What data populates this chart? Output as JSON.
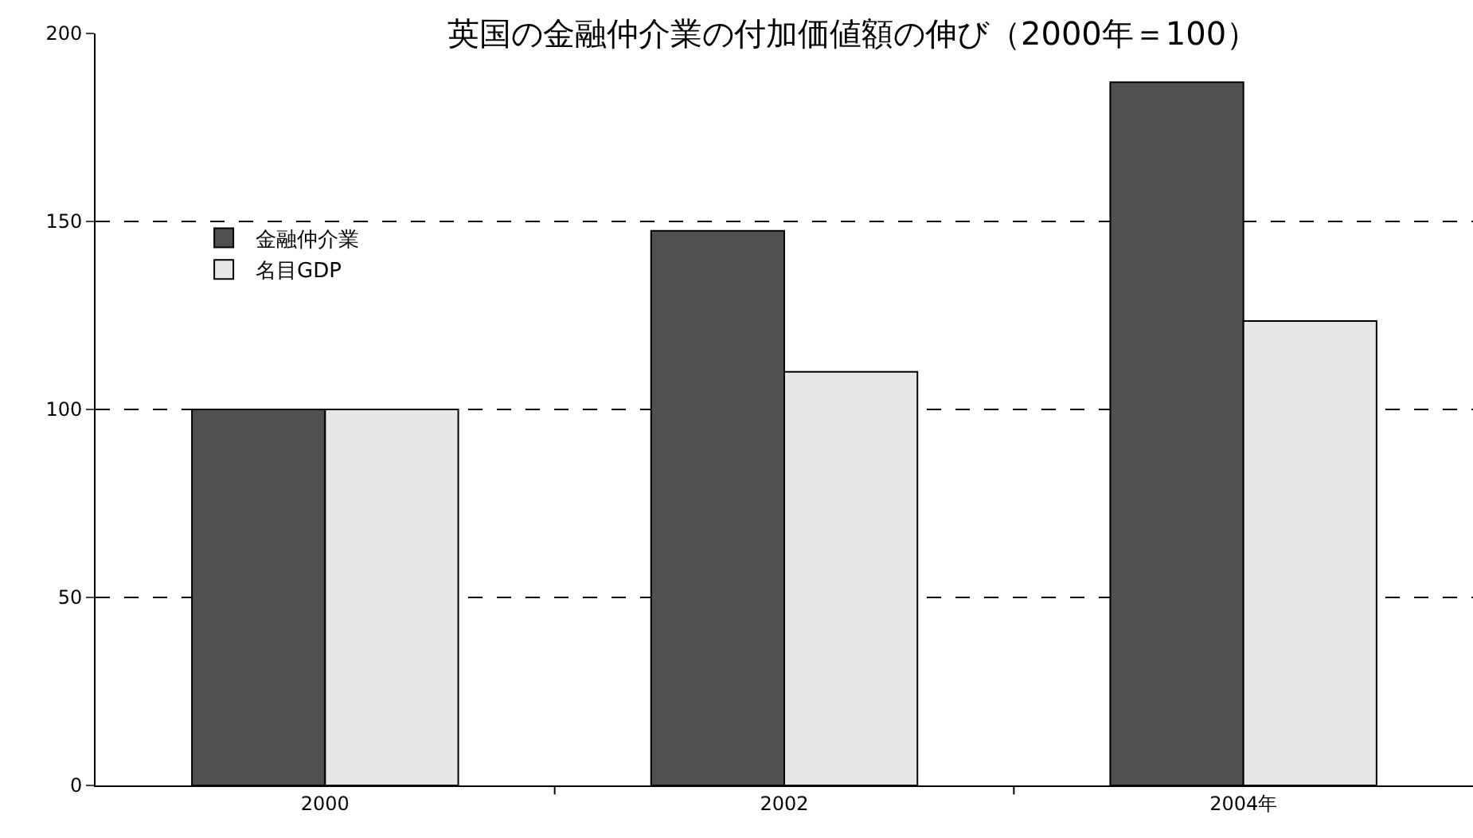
{
  "chart_data": {
    "type": "bar",
    "title": "英国の金融仲介業の付加価値額の伸び（2000年＝100）",
    "categories": [
      "2000",
      "2002",
      "2004年"
    ],
    "series": [
      {
        "name": "金融仲介業",
        "color": "#505050",
        "values": [
          100,
          147.5,
          187
        ]
      },
      {
        "name": "名目GDP",
        "color": "#e6e6e6",
        "values": [
          100,
          110,
          123.5
        ]
      }
    ],
    "ylim": [
      0,
      200
    ],
    "yticks": [
      0,
      50,
      100,
      150,
      200
    ],
    "grid": "y",
    "legend": "top left"
  }
}
